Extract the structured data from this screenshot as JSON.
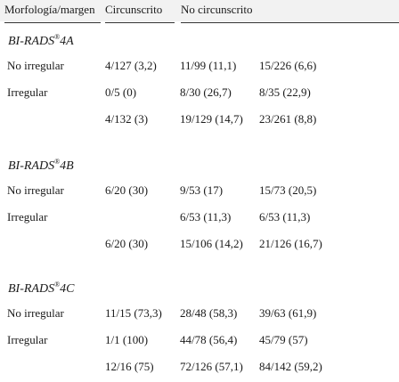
{
  "headers": [
    "Morfología/margen",
    "Circunscrito",
    "No circunscrito"
  ],
  "sections": [
    {
      "title": "BI-RADS",
      "sup": "®",
      "suffix": "4A",
      "rows": [
        {
          "label": "No irregular",
          "c1": "4/127 (3,2)",
          "c2": "11/99 (11,1)",
          "c3": "15/226 (6,6)"
        },
        {
          "label": "Irregular",
          "c1": "0/5 (0)",
          "c2": "8/30 (26,7)",
          "c3": "8/35 (22,9)"
        },
        {
          "label": "",
          "c1": "4/132 (3)",
          "c2": "19/129 (14,7)",
          "c3": "23/261 (8,8)"
        }
      ]
    },
    {
      "title": "BI-RADS",
      "sup": "®",
      "suffix": "4B",
      "rows": [
        {
          "label": "No irregular",
          "c1": "6/20 (30)",
          "c2": "9/53 (17)",
          "c3": "15/73 (20,5)"
        },
        {
          "label": "Irregular",
          "c1": "",
          "c2": "6/53 (11,3)",
          "c3": "6/53 (11,3)"
        },
        {
          "label": "",
          "c1": "6/20 (30)",
          "c2": "15/106 (14,2)",
          "c3": "21/126 (16,7)"
        }
      ]
    },
    {
      "title": "BI-RADS",
      "sup": "®",
      "suffix": "4C",
      "rows": [
        {
          "label": "No irregular",
          "c1": "11/15 (73,3)",
          "c2": "28/48 (58,3)",
          "c3": "39/63 (61,9)"
        },
        {
          "label": "Irregular",
          "c1": "1/1 (100)",
          "c2": "44/78 (56,4)",
          "c3": "45/79 (57)"
        },
        {
          "label": "",
          "c1": "12/16 (75)",
          "c2": "72/126 (57,1)",
          "c3": "84/142 (59,2)"
        }
      ]
    }
  ]
}
